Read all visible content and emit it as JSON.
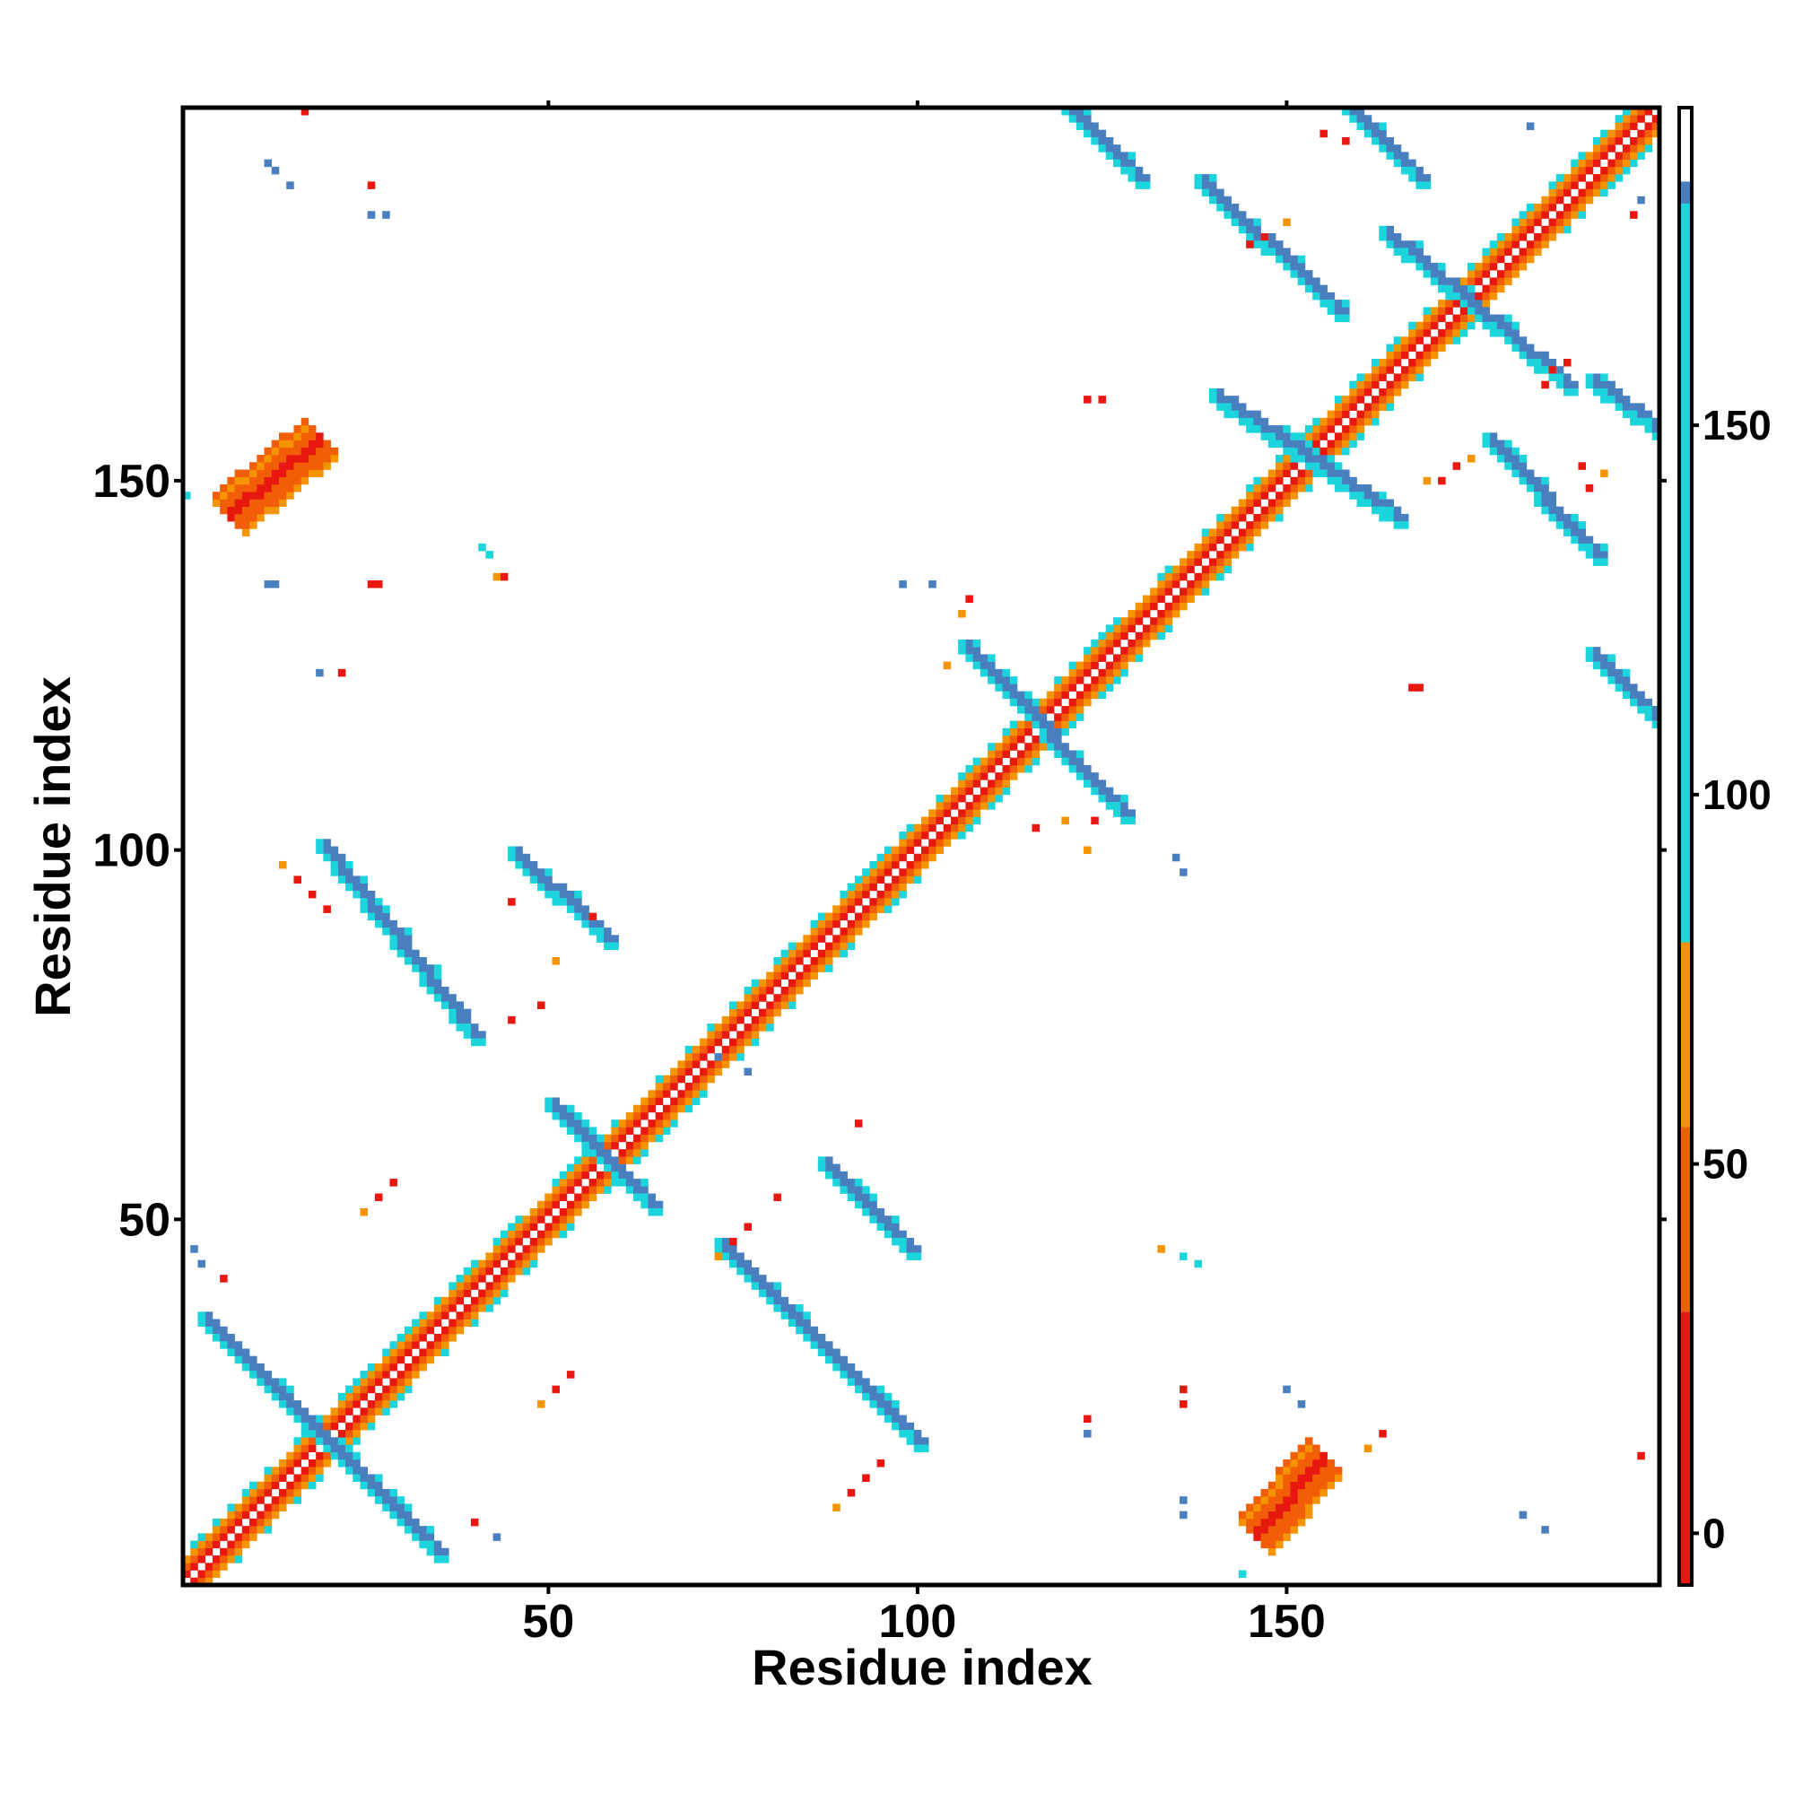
{
  "chart_data": {
    "type": "heatmap",
    "title": "",
    "xlabel": "Residue index",
    "ylabel": "Residue index",
    "xlim": [
      1,
      200
    ],
    "ylim": [
      1,
      200
    ],
    "x_ticks": [
      50,
      100,
      150
    ],
    "y_ticks": [
      50,
      100,
      150
    ],
    "colorbar": {
      "ticks": [
        0,
        50,
        100,
        150
      ],
      "range": [
        -7,
        193
      ],
      "bands": [
        {
          "from": -7,
          "to": 30,
          "color": "#e8170f"
        },
        {
          "from": 30,
          "to": 55,
          "color": "#f25d07"
        },
        {
          "from": 55,
          "to": 80,
          "color": "#f39400"
        },
        {
          "from": 80,
          "to": 180,
          "color": "#1cd4dc"
        },
        {
          "from": 180,
          "to": 183,
          "color": "#4a7fbf"
        },
        {
          "from": 183,
          "to": 193,
          "color": "#ffffff"
        }
      ]
    },
    "colors": {
      "red": "#e8170f",
      "orange_red": "#f25d07",
      "orange": "#f39400",
      "cyan": "#1cd4dc",
      "blue": "#4a7fbf"
    },
    "features": {
      "main_diagonal": {
        "from": 1,
        "to": 200
      },
      "antiparallel_strands": [
        {
          "x": [
            4,
            35
          ],
          "y": [
            36,
            5
          ],
          "color": "blue"
        },
        {
          "x": [
            20,
            40
          ],
          "y": [
            100,
            75
          ],
          "color": "blue"
        },
        {
          "x": [
            46,
            58
          ],
          "y": [
            99,
            88
          ],
          "color": "blue"
        },
        {
          "x": [
            51,
            64
          ],
          "y": [
            65,
            52
          ],
          "color": "blue"
        },
        {
          "x": [
            74,
            100
          ],
          "y": [
            46,
            20
          ],
          "color": "blue"
        },
        {
          "x": [
            88,
            99
          ],
          "y": [
            57,
            46
          ],
          "color": "blue"
        },
        {
          "x": [
            107,
            128
          ],
          "y": [
            127,
            105
          ],
          "color": "blue"
        },
        {
          "x": [
            121,
            130
          ],
          "y": [
            200,
            191
          ],
          "color": "blue"
        },
        {
          "x": [
            139,
            157
          ],
          "y": [
            190,
            173
          ],
          "color": "blue"
        },
        {
          "x": [
            159,
            168
          ],
          "y": [
            200,
            191
          ],
          "color": "blue"
        },
        {
          "x": [
            164,
            188
          ],
          "y": [
            183,
            163
          ],
          "color": "blue"
        },
        {
          "x": [
            141,
            165
          ],
          "y": [
            161,
            145
          ],
          "color": "blue"
        },
        {
          "x": [
            178,
            192
          ],
          "y": [
            155,
            140
          ],
          "color": "blue"
        },
        {
          "x": [
            192,
            200
          ],
          "y": [
            163,
            157
          ],
          "color": "blue"
        },
        {
          "x": [
            192,
            200
          ],
          "y": [
            126,
            118
          ],
          "color": "blue"
        }
      ],
      "parallel_contacts": [
        {
          "x": [
            7,
            19
          ],
          "y": [
            145,
            155
          ],
          "color": "red"
        },
        {
          "x": [
            146,
            155
          ],
          "y": [
            7,
            17
          ],
          "color": "red"
        }
      ]
    }
  }
}
